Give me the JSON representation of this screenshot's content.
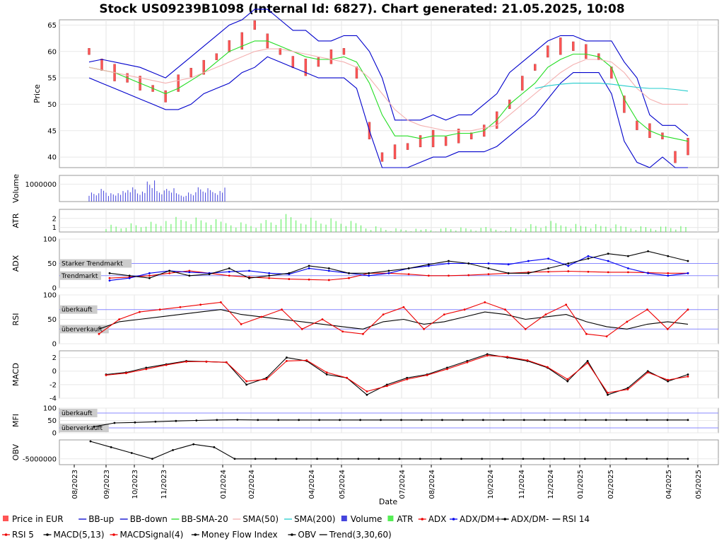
{
  "title": "Stock US09239B1098 (Internal Id: 6827). Chart generated: 21.05.2025, 10:08",
  "xlabel": "Date",
  "date_ticks": [
    "08/2023",
    "09/2023",
    "10/2023",
    "11/2023",
    "01/2024",
    "02/2024",
    "04/2024",
    "05/2024",
    "07/2024",
    "08/2024",
    "10/2024",
    "11/2024",
    "12/2024",
    "01/2025",
    "02/2025",
    "04/2025",
    "05/2025"
  ],
  "colors": {
    "price": "#ff5555",
    "bb": "#0000cc",
    "bbsma": "#22dd22",
    "sma50": "#f4b0b0",
    "sma200": "#22cccc",
    "volume": "#4444dd",
    "atr": "#55ee55",
    "adx_red": "#ee0000",
    "adx_blue": "#0000ee",
    "black": "#000000",
    "ref": "#8888ff"
  },
  "chart_data": [
    {
      "panel": "price",
      "type": "line",
      "ylabel": "Price",
      "ylim": [
        38,
        66
      ],
      "yticks": [
        40,
        45,
        50,
        55,
        60,
        65
      ],
      "series": [
        {
          "name": "Price in EUR",
          "values": [
            60,
            57.5,
            56,
            55,
            54,
            53,
            51.5,
            54,
            56,
            57,
            59,
            61,
            62,
            65,
            62,
            60,
            58,
            57,
            58,
            59,
            60,
            56,
            45,
            40,
            41,
            42,
            43,
            43.5,
            43,
            44,
            44,
            45,
            47,
            50,
            54,
            57,
            60,
            61,
            61,
            60,
            59,
            56,
            50,
            46,
            45,
            44,
            40,
            42
          ]
        },
        {
          "name": "BB-up",
          "values": [
            58,
            58.5,
            58,
            57.5,
            57,
            56,
            55,
            57,
            59,
            61,
            63,
            65,
            66,
            68,
            68,
            66,
            64,
            64,
            62,
            62,
            63,
            63,
            60,
            55,
            47,
            47,
            47,
            48,
            47,
            48,
            48,
            50,
            52,
            56,
            58,
            60,
            62,
            63,
            63,
            62,
            62,
            62,
            58,
            55,
            48,
            46,
            46,
            44
          ]
        },
        {
          "name": "BB-down",
          "values": [
            55,
            54,
            53,
            52,
            51,
            50,
            49,
            49,
            50,
            52,
            53,
            54,
            56,
            57,
            59,
            58,
            57,
            56,
            55,
            55,
            55,
            53,
            45,
            38,
            38,
            38,
            39,
            40,
            40,
            41,
            41,
            41,
            42,
            44,
            46,
            48,
            51,
            54,
            56,
            56,
            56,
            52,
            43,
            39,
            38,
            40,
            38,
            38
          ]
        },
        {
          "name": "BB-SMA-20",
          "values": [
            57,
            56.5,
            56,
            55,
            54,
            53,
            52,
            53,
            54.5,
            56,
            58,
            60,
            61,
            62,
            62,
            61,
            60,
            59,
            58.5,
            58.5,
            59,
            58,
            54,
            48,
            44,
            44,
            43.5,
            44,
            44,
            44.5,
            44.5,
            45,
            47,
            50,
            52,
            54,
            57,
            58.5,
            59.5,
            59.5,
            59,
            57,
            51,
            47,
            45,
            44,
            43.5,
            43
          ]
        },
        {
          "name": "SMA(50)",
          "values": [
            57,
            56.5,
            56,
            55.5,
            55,
            54.5,
            54,
            54.5,
            55,
            56,
            57,
            58,
            59,
            60,
            60.5,
            60.5,
            60,
            59.5,
            59,
            58.5,
            58,
            57,
            55,
            52,
            49,
            47,
            46,
            45.5,
            45,
            45,
            45,
            45.5,
            46,
            48,
            50,
            52,
            54,
            56,
            57.5,
            58.5,
            58.5,
            58,
            56,
            53,
            51,
            50,
            50,
            50
          ]
        },
        {
          "name": "SMA(200)",
          "values": [
            null,
            null,
            null,
            null,
            null,
            null,
            null,
            null,
            null,
            null,
            null,
            null,
            null,
            null,
            null,
            null,
            null,
            null,
            null,
            null,
            null,
            null,
            null,
            null,
            null,
            null,
            null,
            null,
            null,
            null,
            null,
            null,
            null,
            null,
            null,
            53,
            53.5,
            53.8,
            54,
            54,
            54,
            53.8,
            53.5,
            53.2,
            53,
            53,
            52.8,
            52.5
          ]
        }
      ]
    },
    {
      "panel": "volume",
      "type": "bar",
      "ylabel": "Volume",
      "ylim": [
        0,
        1500000
      ],
      "yticks": [
        1000000
      ],
      "series": [
        {
          "name": "Volume",
          "values": [
            600000,
            800000,
            500000,
            700000,
            900000,
            600000,
            1400000,
            700000,
            800000,
            500000,
            600000,
            900000,
            800000,
            700000,
            1100000
          ]
        }
      ]
    },
    {
      "panel": "atr",
      "type": "bar",
      "ylabel": "ATR",
      "ylim": [
        0.5,
        3
      ],
      "yticks": [
        1,
        2
      ],
      "series": [
        {
          "name": "ATR",
          "values": [
            1.5,
            1.6,
            1.7,
            2.5,
            2.3,
            2.0,
            1.8,
            1.6,
            2.0,
            2.6,
            2.4,
            2.2,
            1.8,
            1.3,
            1.0,
            0.9,
            1.0,
            1.1,
            1.0,
            1.1,
            1.2,
            1.5,
            1.8,
            1.6,
            1.5,
            1.4,
            1.3,
            1.2,
            1.2,
            1.1
          ]
        }
      ]
    },
    {
      "panel": "adx",
      "type": "line",
      "ylabel": "ADX",
      "ylim": [
        0,
        100
      ],
      "yticks": [
        0,
        50,
        100
      ],
      "annotations": [
        "Starker Trendmarkt",
        "Trendmarkt"
      ],
      "series": [
        {
          "name": "ADX",
          "values": [
            20,
            22,
            25,
            30,
            35,
            30,
            25,
            22,
            20,
            18,
            17,
            16,
            20,
            30,
            30,
            28,
            25,
            25,
            26,
            28,
            30,
            32,
            33,
            34,
            33,
            32,
            32,
            31,
            30,
            30
          ]
        },
        {
          "name": "ADX/DM+",
          "values": [
            15,
            20,
            30,
            35,
            32,
            30,
            33,
            35,
            30,
            28,
            40,
            35,
            30,
            25,
            30,
            40,
            45,
            50,
            50,
            50,
            48,
            55,
            60,
            45,
            65,
            55,
            40,
            30,
            25,
            30
          ]
        },
        {
          "name": "ADX/DM-",
          "values": [
            30,
            25,
            20,
            35,
            25,
            28,
            40,
            20,
            25,
            30,
            45,
            40,
            30,
            30,
            35,
            40,
            48,
            55,
            50,
            40,
            30,
            30,
            40,
            50,
            60,
            70,
            65,
            75,
            65,
            55
          ]
        }
      ]
    },
    {
      "panel": "rsi",
      "type": "line",
      "ylabel": "RSI",
      "ylim": [
        0,
        100
      ],
      "yticks": [
        0,
        50,
        100
      ],
      "annotations": [
        "überkauft",
        "überverkauft"
      ],
      "series": [
        {
          "name": "RSI 14",
          "values": [
            30,
            45,
            50,
            55,
            60,
            65,
            70,
            60,
            55,
            50,
            45,
            40,
            35,
            30,
            45,
            50,
            40,
            45,
            55,
            65,
            60,
            50,
            55,
            60,
            45,
            35,
            30,
            40,
            45,
            40
          ]
        },
        {
          "name": "RSI 5",
          "values": [
            20,
            50,
            65,
            70,
            75,
            80,
            85,
            40,
            55,
            70,
            30,
            50,
            25,
            20,
            60,
            75,
            30,
            60,
            70,
            85,
            70,
            30,
            60,
            80,
            20,
            15,
            45,
            70,
            30,
            70
          ]
        }
      ]
    },
    {
      "panel": "macd",
      "type": "line",
      "ylabel": "MACD",
      "ylim": [
        -4,
        3
      ],
      "yticks": [
        -4,
        -2,
        0,
        2
      ],
      "series": [
        {
          "name": "MACD(5,13)",
          "values": [
            -0.5,
            -0.2,
            0.5,
            1.0,
            1.5,
            1.4,
            1.3,
            -2.0,
            -1.0,
            2.0,
            1.5,
            -0.5,
            -1.0,
            -3.5,
            -2.0,
            -1.0,
            -0.5,
            0.5,
            1.5,
            2.5,
            2.0,
            1.5,
            0.5,
            -1.5,
            1.5,
            -3.5,
            -2.5,
            0.0,
            -1.5,
            -0.5
          ]
        },
        {
          "name": "MACDSignal(4)",
          "values": [
            -0.6,
            -0.3,
            0.3,
            0.9,
            1.4,
            1.4,
            1.3,
            -1.5,
            -1.2,
            1.5,
            1.6,
            -0.2,
            -1.0,
            -3.0,
            -2.2,
            -1.2,
            -0.6,
            0.3,
            1.3,
            2.3,
            2.1,
            1.6,
            0.6,
            -1.2,
            1.2,
            -3.2,
            -2.7,
            -0.2,
            -1.3,
            -0.8
          ]
        }
      ]
    },
    {
      "panel": "mfi",
      "type": "line",
      "ylabel": "MFI",
      "ylim": [
        0,
        100
      ],
      "yticks": [
        0,
        50,
        100
      ],
      "annotations": [
        "überkauft",
        "überverkauft"
      ],
      "series": [
        {
          "name": "Money Flow Index",
          "values": [
            25,
            40,
            42,
            45,
            48,
            50,
            52,
            53,
            52,
            52,
            52,
            52,
            52,
            52,
            52,
            52,
            52,
            52,
            52,
            52,
            52,
            52,
            52,
            52,
            52,
            52,
            52,
            52,
            52,
            52
          ]
        }
      ]
    },
    {
      "panel": "obv",
      "type": "line",
      "ylabel": "OBV",
      "ylim": [
        -7000000,
        1500000
      ],
      "yticks": [
        -5000000
      ],
      "series": [
        {
          "name": "OBV",
          "values": [
            1000000,
            -1000000,
            -3000000,
            -5000000,
            -2000000,
            0,
            -1000000,
            -5000000,
            -5000000,
            -5000000,
            -5000000,
            -5000000,
            -5000000,
            -5000000,
            -5000000,
            -5000000,
            -5000000,
            -5000000,
            -5000000,
            -5000000,
            -5000000,
            -5000000,
            -5000000,
            -5000000,
            -5000000,
            -5000000,
            -5000000,
            -5000000,
            -5000000,
            -5000000
          ]
        },
        {
          "name": "Trend(3,30,60)",
          "values": []
        }
      ]
    }
  ],
  "legend": [
    {
      "label": "Price in EUR",
      "color": "#ff5555",
      "kind": "box"
    },
    {
      "label": "BB-up",
      "color": "#0000cc",
      "kind": "line"
    },
    {
      "label": "BB-down",
      "color": "#0000cc",
      "kind": "line"
    },
    {
      "label": "BB-SMA-20",
      "color": "#22dd22",
      "kind": "line"
    },
    {
      "label": "SMA(50)",
      "color": "#f4b0b0",
      "kind": "line"
    },
    {
      "label": "SMA(200)",
      "color": "#22cccc",
      "kind": "line"
    },
    {
      "label": "Volume",
      "color": "#4444dd",
      "kind": "box"
    },
    {
      "label": "ATR",
      "color": "#55ee55",
      "kind": "box"
    },
    {
      "label": "ADX",
      "color": "#ee0000",
      "kind": "dot"
    },
    {
      "label": "ADX/DM+",
      "color": "#0000ee",
      "kind": "dot"
    },
    {
      "label": "ADX/DM-",
      "color": "#000000",
      "kind": "dot"
    },
    {
      "label": "RSI 14",
      "color": "#000000",
      "kind": "line"
    },
    {
      "label": "RSI 5",
      "color": "#ee0000",
      "kind": "dot"
    },
    {
      "label": "MACD(5,13)",
      "color": "#000000",
      "kind": "dot"
    },
    {
      "label": "MACDSignal(4)",
      "color": "#ee0000",
      "kind": "dot"
    },
    {
      "label": "Money Flow Index",
      "color": "#000000",
      "kind": "dot"
    },
    {
      "label": "OBV",
      "color": "#000000",
      "kind": "dot"
    },
    {
      "label": "Trend(3,30,60)",
      "color": "#000000",
      "kind": "line"
    }
  ]
}
